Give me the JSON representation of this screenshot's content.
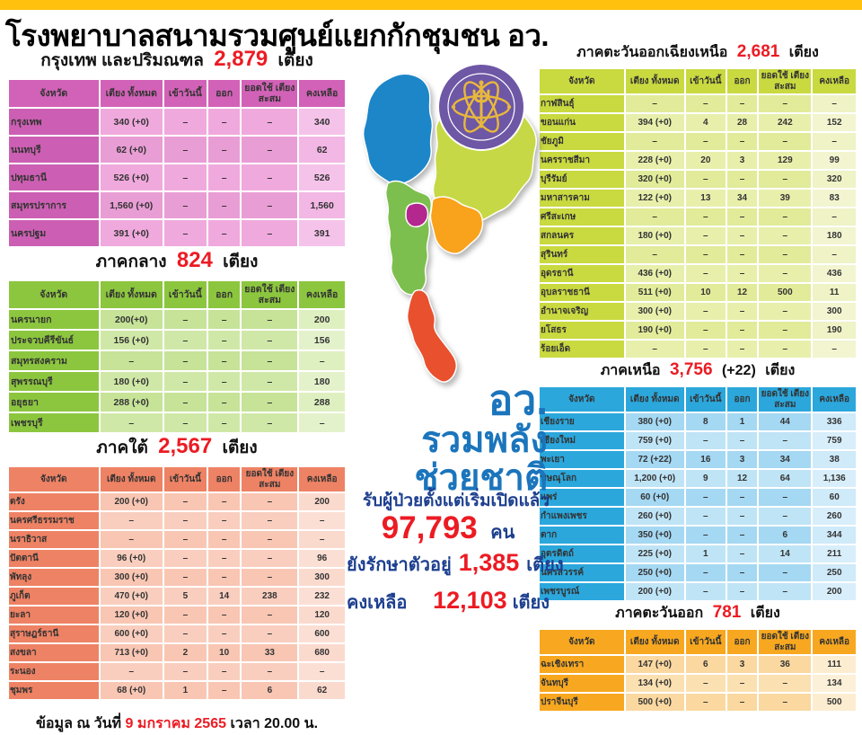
{
  "page": {
    "title": "โรงพยาบาลสนามรวมศูนย์แยกกักชุมชน อว."
  },
  "columns": [
    "จังหวัด",
    "เตียง ทั้งหมด",
    "เข้าวันนี้",
    "ออก",
    "ยอดใช้ เตียงสะสม",
    "คงเหลือ"
  ],
  "tables": [
    {
      "region": "กรุงเทพ และปริมณฑล",
      "total": "2,879",
      "plus": "",
      "unit": "เตียง",
      "rows": [
        [
          "กรุงเทพ",
          "340 (+0)",
          "–",
          "–",
          "–",
          "340"
        ],
        [
          "นนทบุรี",
          "62 (+0)",
          "–",
          "–",
          "–",
          "62"
        ],
        [
          "ปทุมธานี",
          "526 (+0)",
          "–",
          "–",
          "–",
          "526"
        ],
        [
          "สมุทรปราการ",
          "1,560 (+0)",
          "–",
          "–",
          "–",
          "1,560"
        ],
        [
          "นครปฐม",
          "391 (+0)",
          "–",
          "–",
          "–",
          "391"
        ]
      ]
    },
    {
      "region": "ภาคกลาง",
      "total": "824",
      "plus": "",
      "unit": "เตียง",
      "rows": [
        [
          "นครนายก",
          "200(+0)",
          "–",
          "–",
          "–",
          "200"
        ],
        [
          "ประจวบคีรีขันธ์",
          "156 (+0)",
          "–",
          "–",
          "–",
          "156"
        ],
        [
          "สมุทรสงคราม",
          "–",
          "–",
          "–",
          "–",
          "–"
        ],
        [
          "สุพรรณบุรี",
          "180 (+0)",
          "–",
          "–",
          "–",
          "180"
        ],
        [
          "อยุธยา",
          "288 (+0)",
          "–",
          "–",
          "–",
          "288"
        ],
        [
          "เพชรบุรี",
          "–",
          "–",
          "–",
          "–",
          "–"
        ]
      ]
    },
    {
      "region": "ภาคใต้",
      "total": "2,567",
      "plus": "",
      "unit": "เตียง",
      "rows": [
        [
          "ตรัง",
          "200 (+0)",
          "–",
          "–",
          "–",
          "200"
        ],
        [
          "นครศรีธรรมราช",
          "–",
          "–",
          "–",
          "–",
          "–"
        ],
        [
          "นราธิวาส",
          "–",
          "–",
          "–",
          "–",
          "–"
        ],
        [
          "ปัตตานี",
          "96 (+0)",
          "–",
          "–",
          "–",
          "96"
        ],
        [
          "พัทลุง",
          "300 (+0)",
          "–",
          "–",
          "–",
          "300"
        ],
        [
          "ภูเก็ต",
          "470 (+0)",
          "5",
          "14",
          "238",
          "232"
        ],
        [
          "ยะลา",
          "120 (+0)",
          "–",
          "–",
          "–",
          "120"
        ],
        [
          "สุราษฎร์ธานี",
          "600 (+0)",
          "–",
          "–",
          "–",
          "600"
        ],
        [
          "สงขลา",
          "713 (+0)",
          "2",
          "10",
          "33",
          "680"
        ],
        [
          "ระนอง",
          "–",
          "–",
          "–",
          "–",
          "–"
        ],
        [
          "ชุมพร",
          "68 (+0)",
          "1",
          "–",
          "6",
          "62"
        ]
      ]
    },
    {
      "region": "ภาคตะวันออกเฉียงเหนือ",
      "total": "2,681",
      "plus": "",
      "unit": "เตียง",
      "rows": [
        [
          "กาฬสินธุ์",
          "–",
          "–",
          "–",
          "–",
          "–"
        ],
        [
          "ขอนแก่น",
          "394 (+0)",
          "4",
          "28",
          "242",
          "152"
        ],
        [
          "ชัยภูมิ",
          "–",
          "–",
          "–",
          "–",
          "–"
        ],
        [
          "นครราชสีมา",
          "228 (+0)",
          "20",
          "3",
          "129",
          "99"
        ],
        [
          "บุรีรัมย์",
          "320 (+0)",
          "–",
          "–",
          "–",
          "320"
        ],
        [
          "มหาสารคาม",
          "122 (+0)",
          "13",
          "34",
          "39",
          "83"
        ],
        [
          "ศรีสะเกษ",
          "–",
          "–",
          "–",
          "–",
          "–"
        ],
        [
          "สกลนคร",
          "180 (+0)",
          "–",
          "–",
          "–",
          "180"
        ],
        [
          "สุรินทร์",
          "–",
          "–",
          "–",
          "–",
          "–"
        ],
        [
          "อุดรธานี",
          "436 (+0)",
          "–",
          "–",
          "–",
          "436"
        ],
        [
          "อุบลราชธานี",
          "511 (+0)",
          "10",
          "12",
          "500",
          "11"
        ],
        [
          "อำนาจเจริญ",
          "300 (+0)",
          "–",
          "–",
          "–",
          "300"
        ],
        [
          "ยโสธร",
          "190 (+0)",
          "–",
          "–",
          "–",
          "190"
        ],
        [
          "ร้อยเอ็ด",
          "–",
          "–",
          "–",
          "–",
          "–"
        ]
      ]
    },
    {
      "region": "ภาคเหนือ",
      "total": "3,756",
      "plus": "(+22)",
      "unit": "เตียง",
      "rows": [
        [
          "เชียงราย",
          "380 (+0)",
          "8",
          "1",
          "44",
          "336"
        ],
        [
          "เชียงใหม่",
          "759 (+0)",
          "–",
          "–",
          "–",
          "759"
        ],
        [
          "พะเยา",
          "72 (+22)",
          "16",
          "3",
          "34",
          "38"
        ],
        [
          "พิษณุโลก",
          "1,200 (+0)",
          "9",
          "12",
          "64",
          "1,136"
        ],
        [
          "แพร่",
          "60 (+0)",
          "–",
          "–",
          "–",
          "60"
        ],
        [
          "กำแพงเพชร",
          "260 (+0)",
          "–",
          "–",
          "–",
          "260"
        ],
        [
          "ตาก",
          "350 (+0)",
          "–",
          "–",
          "6",
          "344"
        ],
        [
          "อุตรดิตถ์",
          "225 (+0)",
          "1",
          "–",
          "14",
          "211"
        ],
        [
          "นครสวรรค์",
          "250 (+0)",
          "–",
          "–",
          "–",
          "250"
        ],
        [
          "เพชรบูรณ์",
          "200 (+0)",
          "–",
          "–",
          "–",
          "200"
        ]
      ]
    },
    {
      "region": "ภาคตะวันออก",
      "total": "781",
      "plus": "",
      "unit": "เตียง",
      "rows": [
        [
          "ฉะเชิงเทรา",
          "147 (+0)",
          "6",
          "3",
          "36",
          "111"
        ],
        [
          "จันทบุรี",
          "134 (+0)",
          "–",
          "–",
          "–",
          "134"
        ],
        [
          "ปราจีนบุรี",
          "500 (+0)",
          "–",
          "–",
          "–",
          "500"
        ]
      ]
    }
  ],
  "center": {
    "slogan_line1": "อว.",
    "slogan_line2": "รวมพลัง",
    "slogan_line3": "ช่วยชาติ",
    "admitted_label": "รับผู้ป่วยตั้งแต่เริ่มเปิดแล้ว",
    "admitted_value": "97,793",
    "admitted_unit": "คน",
    "in_care_label": "ยังรักษาตัวอยู่",
    "in_care_value": "1,385",
    "in_care_unit": "เตียง",
    "remaining_label": "คงเหลือ",
    "remaining_value": "12,103",
    "remaining_unit": "เตียง"
  },
  "footer": {
    "prefix": "ข้อมูล ณ วันที่",
    "date": "9 มกราคม 2565",
    "suffix": "เวลา  20.00 น."
  },
  "map": {
    "regions": [
      {
        "name": "north",
        "color": "#1D86C8"
      },
      {
        "name": "northeast",
        "color": "#C6D845"
      },
      {
        "name": "central",
        "color": "#7DBF4E"
      },
      {
        "name": "bangkok",
        "color": "#B3278F"
      },
      {
        "name": "east",
        "color": "#F9A21B"
      },
      {
        "name": "south",
        "color": "#E8502E"
      }
    ]
  },
  "colors": {
    "accent_red": "#EC1B23",
    "slogan_blue": "#1B75BC",
    "label_navy": "#1D3F8F",
    "topbar_yellow": "#FFC10E",
    "logo_purple": "#6E57A5",
    "logo_gold": "#E8B83C"
  }
}
